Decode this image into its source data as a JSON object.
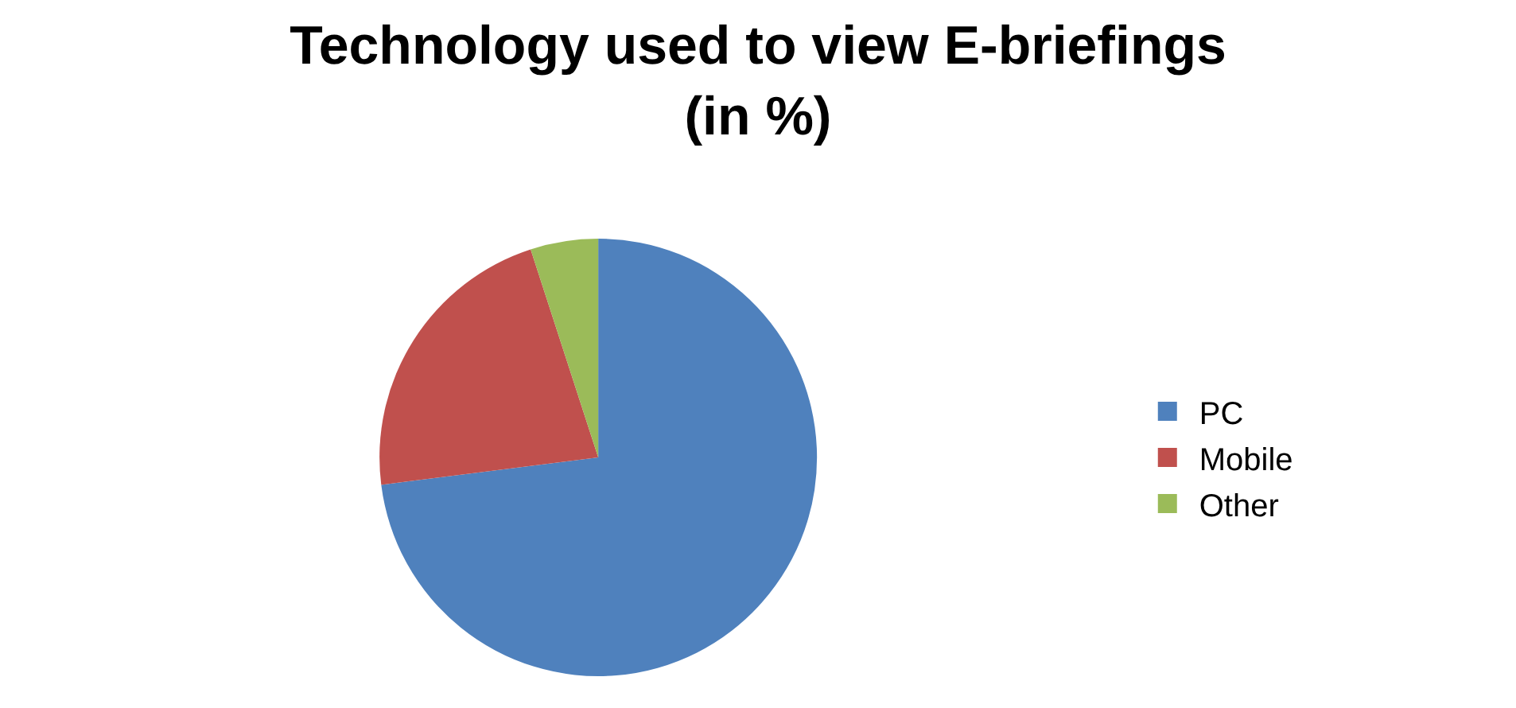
{
  "chart_data": {
    "type": "pie",
    "title": "Technology used to view E-briefings\n(in %)",
    "categories": [
      "PC",
      "Mobile",
      "Other"
    ],
    "values": [
      73,
      22,
      5
    ],
    "colors": [
      "#4f81bd",
      "#c0504d",
      "#9bbb59"
    ],
    "legend": "right"
  }
}
